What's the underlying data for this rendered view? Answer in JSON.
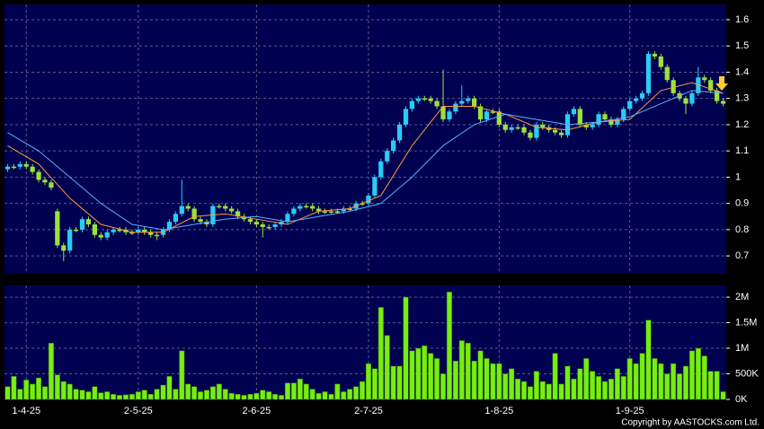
{
  "chart_data": {
    "type": "candlestick",
    "xlim": [
      -0.5,
      115.5
    ],
    "xticks": [
      {
        "value": 3,
        "label": "1-4-25"
      },
      {
        "value": 21,
        "label": "2-5-25"
      },
      {
        "value": 40,
        "label": "2-6-25"
      },
      {
        "value": 58,
        "label": "2-7-25"
      },
      {
        "value": 79,
        "label": "1-8-25"
      },
      {
        "value": 100,
        "label": "1-9-25"
      }
    ],
    "open": [
      1.03,
      1.04,
      1.04,
      1.05,
      1.04,
      1.02,
      0.99,
      0.98,
      0.87,
      0.74,
      0.72,
      0.8,
      0.8,
      0.84,
      0.82,
      0.78,
      0.77,
      0.79,
      0.8,
      0.8,
      0.79,
      0.79,
      0.8,
      0.79,
      0.78,
      0.78,
      0.8,
      0.83,
      0.86,
      0.89,
      0.88,
      0.84,
      0.83,
      0.82,
      0.89,
      0.89,
      0.88,
      0.87,
      0.85,
      0.84,
      0.83,
      0.82,
      0.81,
      0.81,
      0.82,
      0.83,
      0.86,
      0.88,
      0.89,
      0.89,
      0.88,
      0.87,
      0.87,
      0.87,
      0.87,
      0.88,
      0.88,
      0.9,
      0.9,
      0.93,
      1.0,
      1.06,
      1.1,
      1.14,
      1.2,
      1.26,
      1.29,
      1.3,
      1.3,
      1.29,
      1.27,
      1.22,
      1.25,
      1.28,
      1.29,
      1.3,
      1.27,
      1.22,
      1.25,
      1.25,
      1.2,
      1.18,
      1.19,
      1.19,
      1.17,
      1.15,
      1.2,
      1.19,
      1.18,
      1.17,
      1.16,
      1.24,
      1.26,
      1.2,
      1.19,
      1.2,
      1.24,
      1.22,
      1.2,
      1.22,
      1.26,
      1.29,
      1.3,
      1.32,
      1.47,
      1.46,
      1.42,
      1.37,
      1.32,
      1.3,
      1.28,
      1.32,
      1.38,
      1.37,
      1.33,
      1.29
    ],
    "high": [
      1.05,
      1.05,
      1.06,
      1.06,
      1.05,
      1.03,
      1.0,
      0.99,
      0.88,
      0.75,
      0.81,
      0.81,
      0.85,
      0.85,
      0.83,
      0.79,
      0.8,
      0.81,
      0.81,
      0.81,
      0.8,
      0.81,
      0.81,
      0.8,
      0.79,
      0.81,
      0.84,
      0.87,
      0.99,
      0.9,
      0.89,
      0.85,
      0.84,
      0.9,
      0.9,
      0.9,
      0.89,
      0.88,
      0.86,
      0.85,
      0.84,
      0.83,
      0.82,
      0.83,
      0.84,
      0.87,
      0.89,
      0.9,
      0.9,
      0.9,
      0.89,
      0.88,
      0.88,
      0.88,
      0.89,
      0.89,
      0.91,
      0.91,
      0.94,
      1.01,
      1.07,
      1.11,
      1.15,
      1.21,
      1.27,
      1.3,
      1.31,
      1.31,
      1.31,
      1.3,
      1.41,
      1.26,
      1.29,
      1.35,
      1.31,
      1.31,
      1.28,
      1.26,
      1.26,
      1.26,
      1.21,
      1.2,
      1.2,
      1.2,
      1.18,
      1.21,
      1.21,
      1.2,
      1.19,
      1.18,
      1.25,
      1.27,
      1.27,
      1.21,
      1.21,
      1.25,
      1.25,
      1.23,
      1.23,
      1.27,
      1.3,
      1.31,
      1.33,
      1.48,
      1.48,
      1.47,
      1.43,
      1.38,
      1.33,
      1.31,
      1.33,
      1.42,
      1.39,
      1.38,
      1.34,
      1.3
    ],
    "low": [
      1.02,
      1.03,
      1.03,
      1.03,
      1.01,
      0.98,
      0.97,
      0.95,
      0.73,
      0.68,
      0.71,
      0.79,
      0.79,
      0.81,
      0.77,
      0.76,
      0.76,
      0.78,
      0.79,
      0.78,
      0.78,
      0.78,
      0.78,
      0.77,
      0.76,
      0.77,
      0.79,
      0.82,
      0.85,
      0.87,
      0.83,
      0.82,
      0.81,
      0.81,
      0.88,
      0.87,
      0.86,
      0.84,
      0.83,
      0.82,
      0.81,
      0.77,
      0.8,
      0.8,
      0.81,
      0.82,
      0.85,
      0.87,
      0.88,
      0.87,
      0.86,
      0.86,
      0.86,
      0.86,
      0.86,
      0.87,
      0.87,
      0.89,
      0.89,
      0.92,
      0.99,
      1.05,
      1.09,
      1.13,
      1.19,
      1.25,
      1.28,
      1.29,
      1.28,
      1.26,
      1.21,
      1.21,
      1.24,
      1.27,
      1.28,
      1.26,
      1.21,
      1.21,
      1.24,
      1.19,
      1.17,
      1.17,
      1.18,
      1.16,
      1.14,
      1.14,
      1.18,
      1.17,
      1.16,
      1.15,
      1.15,
      1.23,
      1.19,
      1.18,
      1.18,
      1.19,
      1.21,
      1.19,
      1.19,
      1.21,
      1.25,
      1.28,
      1.29,
      1.31,
      1.45,
      1.41,
      1.36,
      1.31,
      1.29,
      1.24,
      1.27,
      1.31,
      1.36,
      1.32,
      1.28,
      1.27
    ],
    "close": [
      1.04,
      1.04,
      1.05,
      1.04,
      1.02,
      0.99,
      0.98,
      0.96,
      0.74,
      0.72,
      0.8,
      0.8,
      0.84,
      0.82,
      0.78,
      0.77,
      0.79,
      0.8,
      0.8,
      0.79,
      0.79,
      0.8,
      0.79,
      0.78,
      0.78,
      0.8,
      0.83,
      0.86,
      0.89,
      0.88,
      0.84,
      0.83,
      0.82,
      0.89,
      0.89,
      0.88,
      0.87,
      0.85,
      0.84,
      0.83,
      0.82,
      0.81,
      0.81,
      0.82,
      0.83,
      0.86,
      0.88,
      0.89,
      0.89,
      0.88,
      0.87,
      0.87,
      0.87,
      0.87,
      0.88,
      0.88,
      0.9,
      0.9,
      0.93,
      1.0,
      1.06,
      1.1,
      1.14,
      1.2,
      1.26,
      1.29,
      1.3,
      1.3,
      1.29,
      1.27,
      1.22,
      1.25,
      1.28,
      1.29,
      1.3,
      1.27,
      1.22,
      1.25,
      1.25,
      1.2,
      1.18,
      1.19,
      1.19,
      1.17,
      1.15,
      1.2,
      1.19,
      1.18,
      1.17,
      1.16,
      1.24,
      1.26,
      1.2,
      1.19,
      1.2,
      1.24,
      1.22,
      1.2,
      1.22,
      1.26,
      1.29,
      1.3,
      1.32,
      1.47,
      1.46,
      1.42,
      1.37,
      1.32,
      1.3,
      1.28,
      1.32,
      1.38,
      1.37,
      1.33,
      1.29,
      1.28
    ],
    "up_color": "#29ccf5",
    "down_color": "#9be23a",
    "ylim": [
      0.632,
      1.658
    ],
    "yticks": [
      0.7,
      0.8,
      0.9,
      1,
      1.1,
      1.2,
      1.3,
      1.4,
      1.5,
      1.6
    ],
    "grid": true,
    "moving_averages": [
      {
        "color": "#ff9a3c",
        "x": [
          0,
          5,
          10,
          15,
          20,
          25,
          30,
          35,
          40,
          45,
          50,
          55,
          60,
          65,
          70,
          75,
          80,
          85,
          90,
          95,
          100,
          105,
          110,
          115
        ],
        "values": [
          1.12,
          1.05,
          0.92,
          0.82,
          0.79,
          0.79,
          0.85,
          0.86,
          0.84,
          0.82,
          0.87,
          0.88,
          0.93,
          1.12,
          1.27,
          1.27,
          1.24,
          1.19,
          1.18,
          1.21,
          1.22,
          1.33,
          1.36,
          1.32
        ]
      },
      {
        "color": "#5ab0ff",
        "x": [
          0,
          5,
          10,
          15,
          20,
          25,
          30,
          35,
          40,
          45,
          50,
          55,
          60,
          65,
          70,
          75,
          80,
          85,
          90,
          95,
          100,
          105,
          110,
          115
        ],
        "values": [
          1.17,
          1.1,
          1.0,
          0.9,
          0.82,
          0.8,
          0.82,
          0.84,
          0.85,
          0.83,
          0.85,
          0.87,
          0.9,
          1.0,
          1.12,
          1.2,
          1.24,
          1.22,
          1.2,
          1.21,
          1.23,
          1.28,
          1.33,
          1.32
        ]
      }
    ],
    "volume": {
      "type": "bar",
      "color": "#77ee11",
      "ylim": [
        0,
        2230000
      ],
      "yticks": [
        {
          "value": 0,
          "label": "0K"
        },
        {
          "value": 500000,
          "label": "500K"
        },
        {
          "value": 1000000,
          "label": "1M"
        },
        {
          "value": 1500000,
          "label": "1.5M"
        },
        {
          "value": 2000000,
          "label": "2M"
        }
      ],
      "values": [
        250000,
        450000,
        200000,
        380000,
        300000,
        420000,
        250000,
        1100000,
        480000,
        350000,
        300000,
        200000,
        180000,
        150000,
        250000,
        130000,
        150000,
        100000,
        80000,
        90000,
        100000,
        150000,
        180000,
        100000,
        200000,
        280000,
        450000,
        200000,
        950000,
        300000,
        250000,
        150000,
        180000,
        250000,
        300000,
        200000,
        120000,
        100000,
        80000,
        100000,
        120000,
        180000,
        150000,
        100000,
        80000,
        320000,
        320000,
        400000,
        300000,
        200000,
        120000,
        150000,
        100000,
        300000,
        150000,
        200000,
        250000,
        350000,
        700000,
        600000,
        1800000,
        1250000,
        650000,
        650000,
        2000000,
        950000,
        1000000,
        1050000,
        900000,
        800000,
        500000,
        2100000,
        750000,
        1150000,
        1100000,
        750000,
        950000,
        800000,
        700000,
        700000,
        500000,
        600000,
        400000,
        350000,
        250000,
        550000,
        350000,
        300000,
        900000,
        300000,
        650000,
        400000,
        600000,
        800000,
        550000,
        450000,
        350000,
        400000,
        600000,
        450000,
        800000,
        700000,
        900000,
        1550000,
        800000,
        700000,
        500000,
        700000,
        500000,
        650000,
        950000,
        1000000,
        850000,
        550000,
        550000,
        150000
      ]
    }
  },
  "copyright": "Copyright by AASTOCKS.com Ltd."
}
